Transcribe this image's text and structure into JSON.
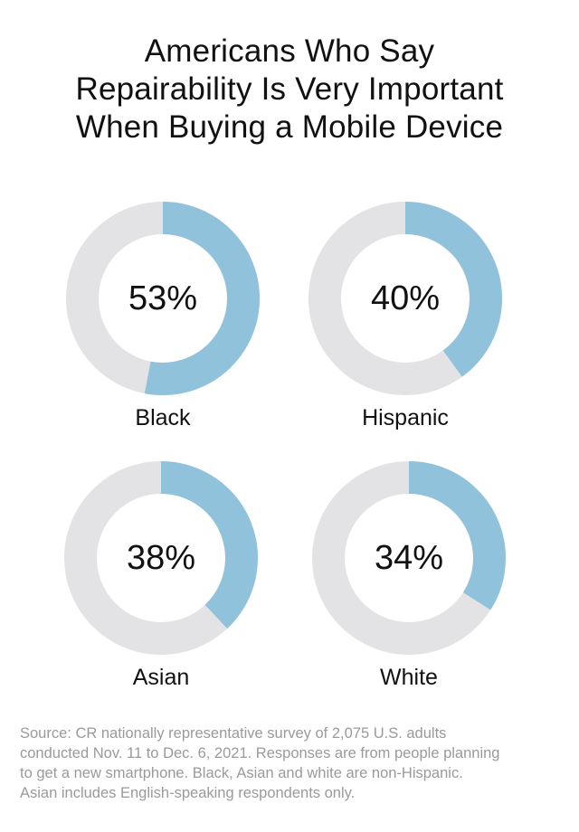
{
  "title_lines": [
    "Americans Who Say",
    "Repairability Is Very Important",
    "When Buying a Mobile Device"
  ],
  "colors": {
    "filled": "#91c2dc",
    "remaining": "#e3e3e5",
    "text": "#111111",
    "source": "#9a9a9a"
  },
  "chart_data": {
    "type": "pie",
    "style": "donut",
    "title": "Americans Who Say Repairability Is Very Important When Buying a Mobile Device",
    "unit": "%",
    "categories": [
      "Black",
      "Hispanic",
      "Asian",
      "White"
    ],
    "values": [
      53,
      40,
      38,
      34
    ],
    "value_labels": [
      "53%",
      "40%",
      "38%",
      "34%"
    ],
    "max": 100
  },
  "source_lines": [
    "Source: CR nationally representative survey of 2,075 U.S. adults",
    "conducted Nov. 11 to Dec. 6, 2021. Responses are from people planning",
    "to get a new smartphone. Black, Asian and white are non-Hispanic.",
    "Asian includes English-speaking respondents only."
  ]
}
